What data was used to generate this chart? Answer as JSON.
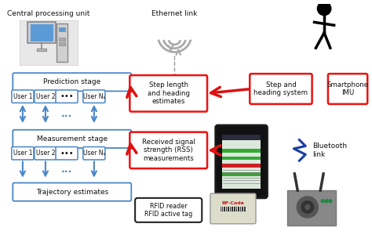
{
  "bg_color": "#ffffff",
  "title_cpu": "Central processing unit",
  "title_ethernet": "Ethernet link",
  "title_bluetooth": "Bluetooth\nlink",
  "title_rfid": "RFID reader\nRFID active tag",
  "box_blue_edge": "#4a86c8",
  "box_red_edge": "#ee1111",
  "box_black_edge": "#222222",
  "arrow_red": "#dd1111",
  "arrow_blue": "#4a86c8",
  "text_color": "#111111",
  "prediction_label": "Prediction stage",
  "measurement_label": "Measurement stage",
  "trajectory_label": "Trajectory estimates",
  "step_length_label": "Step length\nand heading\nestimates",
  "rss_label": "Received signal\nstrength (RSS)\nmeasurements",
  "step_heading_label": "Step and\nheading system",
  "smartphone_label": "Smartphone\nIMU",
  "users_top": [
    "User 1",
    "User 2",
    "•••",
    "User Nᵤ"
  ],
  "users_mid": [
    "User 1",
    "User 2",
    "•••",
    "User Nᵤ"
  ],
  "figw": 4.74,
  "figh": 3.18,
  "dpi": 100
}
